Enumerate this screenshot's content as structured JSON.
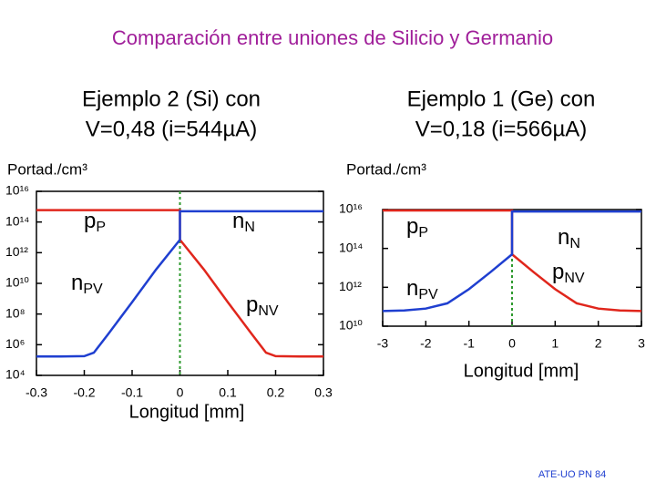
{
  "title": "Comparación entre uniones de Silicio y Germanio",
  "footer": "ATE-UO PN 84",
  "chart_data": [
    {
      "type": "line",
      "title": [
        "Ejemplo 2 (Si) con",
        "V=0,48  (i=544µA)"
      ],
      "y_label": "Portad./cm³",
      "x_label": "Longitud  [mm]",
      "log_y": true,
      "xlim": [
        -0.3,
        0.3
      ],
      "xticks": [
        -0.3,
        -0.2,
        -0.1,
        0,
        0.1,
        0.2,
        0.3
      ],
      "ylim": [
        10000.0,
        1e+16
      ],
      "yticks": [
        {
          "value": 1e+16,
          "label": "10¹⁶"
        },
        {
          "value": 100000000000000.0,
          "label": "10¹⁴"
        },
        {
          "value": 1000000000000.0,
          "label": "10¹²"
        },
        {
          "value": 10000000000.0,
          "label": "10¹⁰"
        },
        {
          "value": 100000000.0,
          "label": "10⁸"
        },
        {
          "value": 1000000.0,
          "label": "10⁶"
        },
        {
          "value": 10000.0,
          "label": "10⁴"
        }
      ],
      "junction_color": "#2e9a2e",
      "series": [
        {
          "color": "#e0261c",
          "x": [
            -0.3,
            0,
            0,
            0.05,
            0.1,
            0.15,
            0.18,
            0.2,
            0.25,
            0.3
          ],
          "values": [
            600000000000000.0,
            600000000000000.0,
            7000000000000.0,
            80000000000.0,
            600000000.0,
            5000000.0,
            300000.0,
            180000.0,
            170000.0,
            170000.0
          ]
        },
        {
          "color": "#1f3fd0",
          "x": [
            -0.3,
            -0.25,
            -0.2,
            -0.18,
            -0.15,
            -0.1,
            -0.05,
            0,
            0,
            0.3
          ],
          "values": [
            170000.0,
            170000.0,
            180000.0,
            300000.0,
            5000000.0,
            600000000.0,
            80000000000.0,
            7000000000000.0,
            500000000000000.0,
            500000000000000.0
          ]
        }
      ],
      "annotations": [
        {
          "text": "p",
          "sub": "P"
        },
        {
          "text": "n",
          "sub": "N"
        },
        {
          "text": "n",
          "sub": "PV"
        },
        {
          "text": "p",
          "sub": "NV"
        }
      ]
    },
    {
      "type": "line",
      "title": [
        "Ejemplo 1 (Ge) con",
        "V=0,18  (i=566µA)"
      ],
      "y_label": "Portad./cm³",
      "x_label": "Longitud  [mm]",
      "log_y": true,
      "xlim": [
        -3,
        3
      ],
      "xticks": [
        -3,
        -2,
        -1,
        0,
        1,
        2,
        3
      ],
      "ylim": [
        10000000000.0,
        1e+16
      ],
      "yticks": [
        {
          "value": 1e+16,
          "label": "10¹⁶"
        },
        {
          "value": 100000000000000.0,
          "label": "10¹⁴"
        },
        {
          "value": 1000000000000.0,
          "label": "10¹²"
        },
        {
          "value": 10000000000.0,
          "label": "10¹⁰"
        }
      ],
      "junction_color": "#2e9a2e",
      "series": [
        {
          "color": "#e0261c",
          "x": [
            -3,
            0,
            0,
            0.5,
            1,
            1.5,
            2,
            2.5,
            3
          ],
          "values": [
            9000000000000000.0,
            9000000000000000.0,
            50000000000000.0,
            6000000000000.0,
            800000000000.0,
            150000000000.0,
            80000000000.0,
            65000000000.0,
            60000000000.0
          ]
        },
        {
          "color": "#1f3fd0",
          "x": [
            -3,
            -2.5,
            -2,
            -1.5,
            -1,
            -0.5,
            0,
            0,
            3
          ],
          "values": [
            60000000000.0,
            65000000000.0,
            80000000000.0,
            150000000000.0,
            800000000000.0,
            6000000000000.0,
            50000000000000.0,
            8000000000000000.0,
            8000000000000000.0
          ]
        }
      ],
      "annotations": [
        {
          "text": "p",
          "sub": "P"
        },
        {
          "text": "n",
          "sub": "N"
        },
        {
          "text": "n",
          "sub": "PV"
        },
        {
          "text": "p",
          "sub": "NV"
        }
      ]
    }
  ]
}
